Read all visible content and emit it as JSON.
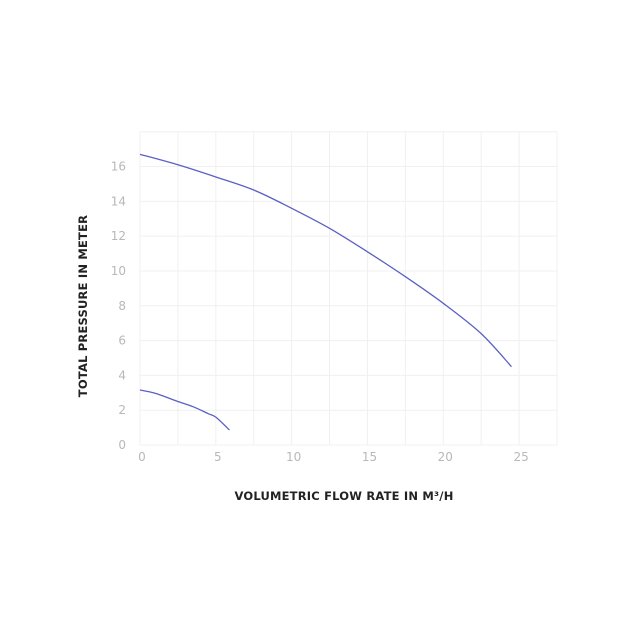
{
  "chart_data": {
    "type": "line",
    "title": "",
    "xlabel": "VOLUMETRIC FLOW RATE IN M³/H",
    "ylabel": "TOTAL PRESSURE IN METER",
    "xlim": [
      0,
      27.5
    ],
    "ylim": [
      0,
      18
    ],
    "xticks": [
      0,
      5,
      10,
      15,
      20,
      25
    ],
    "yticks": [
      0,
      2,
      4,
      6,
      8,
      10,
      12,
      14,
      16
    ],
    "grid": true,
    "line_color": "#5a60c4",
    "series": [
      {
        "x": [
          0,
          2.5,
          5,
          7.5,
          10,
          12.5,
          15,
          17.5,
          20,
          22.5,
          24.5
        ],
        "y": [
          16.7,
          16.1,
          15.4,
          14.65,
          13.6,
          12.45,
          11.1,
          9.67,
          8.14,
          6.4,
          4.5
        ]
      },
      {
        "x": [
          0,
          1,
          2.5,
          3.5,
          4.5,
          5,
          5.9
        ],
        "y": [
          3.16,
          2.97,
          2.5,
          2.2,
          1.8,
          1.6,
          0.86
        ]
      }
    ]
  }
}
